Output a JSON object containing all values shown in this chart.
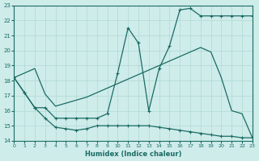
{
  "xlabel": "Humidex (Indice chaleur)",
  "xlim": [
    0,
    23
  ],
  "ylim": [
    14,
    23
  ],
  "xticks": [
    0,
    1,
    2,
    3,
    4,
    5,
    6,
    7,
    8,
    9,
    10,
    11,
    12,
    13,
    14,
    15,
    16,
    17,
    18,
    19,
    20,
    21,
    22,
    23
  ],
  "yticks": [
    14,
    15,
    16,
    17,
    18,
    19,
    20,
    21,
    22,
    23
  ],
  "bg_color": "#ceecea",
  "line_color": "#1a6b63",
  "grid_color": "#b0d8d4",
  "line_diag_x": [
    0,
    1,
    2,
    3,
    4,
    5,
    6,
    7,
    8,
    9,
    10,
    11,
    12,
    13,
    14,
    15,
    16,
    17,
    18,
    19,
    20,
    21,
    22,
    23
  ],
  "line_diag_y": [
    18.2,
    18.5,
    18.8,
    17.1,
    16.3,
    16.5,
    16.7,
    16.9,
    17.2,
    17.5,
    17.8,
    18.1,
    18.4,
    18.7,
    19.0,
    19.3,
    19.6,
    19.9,
    20.2,
    19.9,
    18.2,
    16.0,
    15.8,
    14.2
  ],
  "line_peak_x": [
    0,
    1,
    2,
    3,
    4,
    5,
    6,
    7,
    8,
    9,
    10,
    11,
    12,
    13,
    14,
    15,
    16,
    17,
    18,
    19,
    20,
    21,
    22,
    23
  ],
  "line_peak_y": [
    18.2,
    17.2,
    16.2,
    16.2,
    15.5,
    15.5,
    15.5,
    15.5,
    15.5,
    15.8,
    18.5,
    21.5,
    20.5,
    16.0,
    18.8,
    20.3,
    22.7,
    22.8,
    22.3,
    22.3,
    22.3,
    22.3,
    22.3,
    22.3
  ],
  "line_low_x": [
    0,
    1,
    2,
    3,
    4,
    5,
    6,
    7,
    8,
    9,
    10,
    11,
    12,
    13,
    14,
    15,
    16,
    17,
    18,
    19,
    20,
    21,
    22,
    23
  ],
  "line_low_y": [
    18.2,
    17.2,
    16.2,
    15.5,
    14.9,
    14.8,
    14.7,
    14.8,
    15.0,
    15.0,
    15.0,
    15.0,
    15.0,
    15.0,
    14.9,
    14.8,
    14.7,
    14.6,
    14.5,
    14.4,
    14.3,
    14.3,
    14.2,
    14.2
  ]
}
